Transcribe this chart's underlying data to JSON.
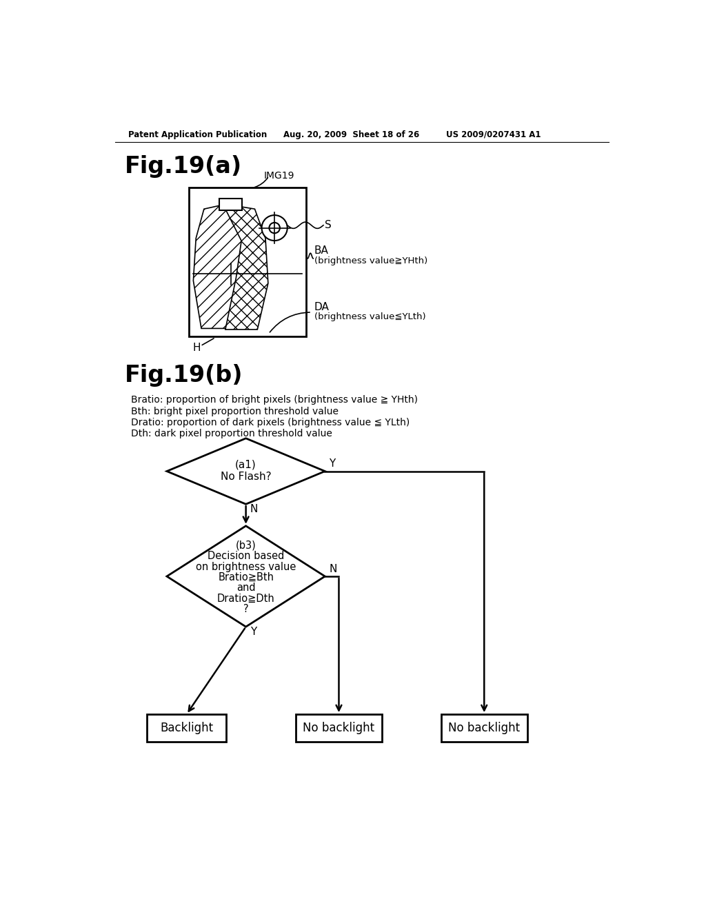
{
  "bg_color": "#ffffff",
  "header_left": "Patent Application Publication",
  "header_mid": "Aug. 20, 2009  Sheet 18 of 26",
  "header_right": "US 2009/0207431 A1",
  "fig_a_label": "Fig.19(a)",
  "fig_b_label": "Fig.19(b)",
  "img_label": "IMG19",
  "S_label": "S",
  "BA_label": "BA",
  "BA_sub": "(brightness value≧YHth)",
  "DA_label": "DA",
  "DA_sub": "(brightness value≦YLth)",
  "H_label": "H",
  "legend_lines": [
    "Bratio: proportion of bright pixels (brightness value ≧ YHth)",
    "Bth: bright pixel proportion threshold value",
    "Dratio: proportion of dark pixels (brightness value ≦ YLth)",
    "Dth: dark pixel proportion threshold value"
  ],
  "diamond1_label1": "(a1)",
  "diamond1_label2": "No Flash?",
  "diamond2_label1": "(b3)",
  "diamond2_label2": "Decision based",
  "diamond2_label3": "on brightness value",
  "diamond2_label4": "Bratio≧Bth",
  "diamond2_label5": "and",
  "diamond2_label6": "Dratio≧Dth",
  "diamond2_label7": "?",
  "box1_label": "Backlight",
  "box2_label": "No backlight",
  "box3_label": "No backlight",
  "Y_label": "Y",
  "N_label": "N"
}
